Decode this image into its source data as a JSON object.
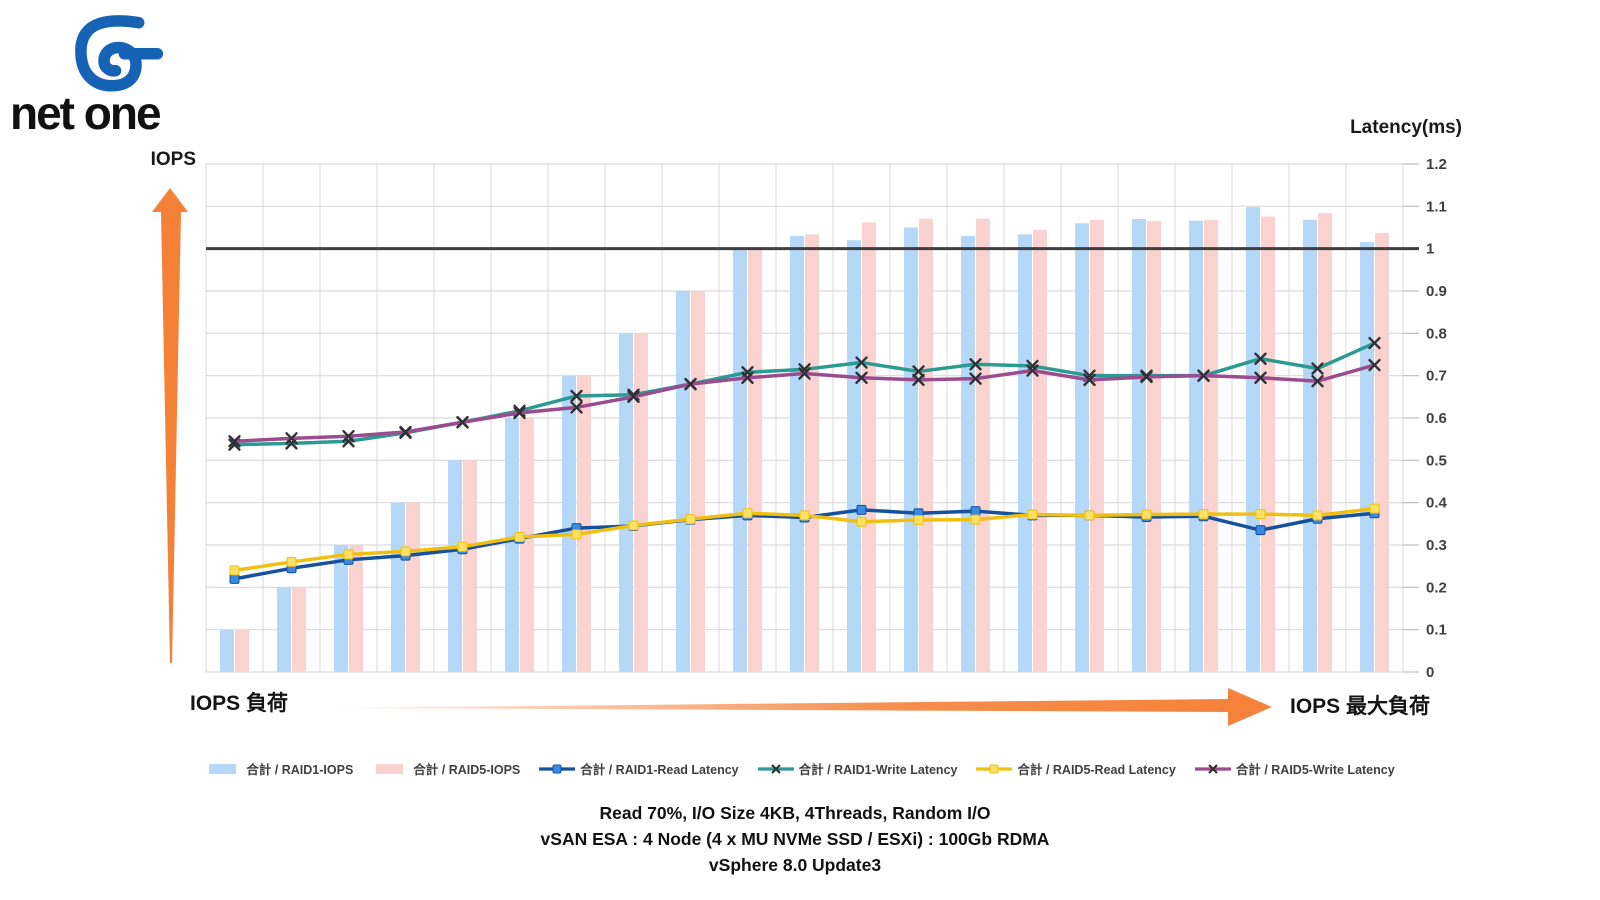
{
  "logo": {
    "brand": "net one"
  },
  "axes": {
    "left_title": "IOPS",
    "right_title": "Latency(ms)"
  },
  "annotations": {
    "load_start": "IOPS 負荷",
    "load_end": "IOPS 最大負荷"
  },
  "footer": {
    "line1": "Read 70%, I/O Size 4KB, 4Threads, Random I/O",
    "line2": "vSAN ESA : 4 Node (4 x MU NVMe SSD / ESXi) : 100Gb RDMA",
    "line3": "vSphere 8.0 Update3"
  },
  "colors": {
    "bar_raid1": "#B5D8F8",
    "bar_raid5": "#FAD3D0",
    "line_raid1_read": "#16519E",
    "marker_raid1_read": "#3A8BE0",
    "line_raid1_write": "#2A9A92",
    "line_raid5_read": "#EFC010",
    "marker_raid5_read": "#FBE066",
    "line_raid5_write": "#9B4B8F",
    "marker_x": "#2F3136",
    "grid": "#D9D9D9",
    "tick": "#BFBFBF",
    "reference_line": "#3F3F3F",
    "orange_arrow": "#F58139",
    "axis_label": "#404040"
  },
  "chart_data": {
    "type": "bar+line combo",
    "x_description": "21 increasing IOPS load steps (no x tick labels shown)",
    "x": [
      1,
      2,
      3,
      4,
      5,
      6,
      7,
      8,
      9,
      10,
      11,
      12,
      13,
      14,
      15,
      16,
      17,
      18,
      19,
      20,
      21
    ],
    "left_axis": {
      "title": "IOPS",
      "tick_labels_shown": false
    },
    "right_axis": {
      "title": "Latency(ms)",
      "min": 0,
      "max": 1.2,
      "step": 0.1,
      "tick_labels": [
        "1.2",
        "1.1",
        "1",
        "0.9",
        "0.8",
        "0.7",
        "0.6",
        "0.5",
        "0.4",
        "0.3",
        "0.2",
        "0.1",
        "0"
      ]
    },
    "reference_line_value": 1.0,
    "grid": "horizontal + vertical light gray",
    "legend_position": "bottom",
    "bar_values_note": "IOPS bars read as fraction of right-axis scale (left axis unlabeled)",
    "bar_series": [
      {
        "name": "合計 / RAID1-IOPS",
        "values": [
          0.1,
          0.2,
          0.3,
          0.4,
          0.5,
          0.6,
          0.7,
          0.8,
          0.9,
          1.0,
          1.03,
          1.02,
          1.05,
          1.03,
          1.034,
          1.06,
          1.07,
          1.066,
          1.098,
          1.068,
          1.016
        ]
      },
      {
        "name": "合計 / RAID5-IOPS",
        "values": [
          0.1,
          0.2,
          0.3,
          0.4,
          0.5,
          0.6,
          0.7,
          0.8,
          0.9,
          1.0,
          1.034,
          1.062,
          1.071,
          1.071,
          1.044,
          1.068,
          1.065,
          1.068,
          1.076,
          1.084,
          1.037
        ]
      }
    ],
    "line_series": [
      {
        "name": "合計 / RAID1-Read Latency",
        "marker": "square",
        "values": [
          0.22,
          0.245,
          0.265,
          0.275,
          0.29,
          0.315,
          0.34,
          0.345,
          0.36,
          0.37,
          0.365,
          0.383,
          0.375,
          0.38,
          0.37,
          0.37,
          0.366,
          0.368,
          0.335,
          0.362,
          0.375
        ]
      },
      {
        "name": "合計 / RAID1-Write Latency",
        "marker": "x",
        "values": [
          0.537,
          0.54,
          0.545,
          0.565,
          0.59,
          0.617,
          0.652,
          0.655,
          0.68,
          0.708,
          0.715,
          0.731,
          0.71,
          0.727,
          0.723,
          0.7,
          0.7,
          0.7,
          0.74,
          0.717,
          0.777
        ]
      },
      {
        "name": "合計 / RAID5-Read Latency",
        "marker": "square",
        "values": [
          0.24,
          0.26,
          0.278,
          0.285,
          0.296,
          0.319,
          0.325,
          0.346,
          0.361,
          0.375,
          0.37,
          0.355,
          0.359,
          0.36,
          0.372,
          0.37,
          0.372,
          0.373,
          0.373,
          0.37,
          0.386
        ]
      },
      {
        "name": "合計 / RAID5-Write Latency",
        "marker": "x",
        "values": [
          0.545,
          0.552,
          0.557,
          0.567,
          0.59,
          0.612,
          0.625,
          0.65,
          0.68,
          0.695,
          0.705,
          0.695,
          0.69,
          0.693,
          0.712,
          0.69,
          0.697,
          0.7,
          0.695,
          0.687,
          0.725
        ]
      }
    ]
  }
}
